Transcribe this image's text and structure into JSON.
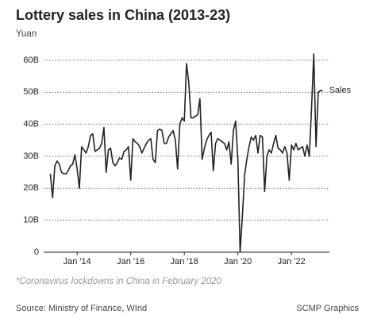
{
  "chart_data": {
    "type": "line",
    "title": "Lottery sales in China (2013-23)",
    "y_label": "Yuan",
    "note": "*Coronavirus lockdowns in China in February 2020",
    "source": "Source: Ministry of Finance, WInd",
    "credit": "SCMP Graphics",
    "x": [
      "2013-01",
      "2013-02",
      "2013-03",
      "2013-04",
      "2013-05",
      "2013-06",
      "2013-07",
      "2013-08",
      "2013-09",
      "2013-10",
      "2013-11",
      "2013-12",
      "2014-01",
      "2014-02",
      "2014-03",
      "2014-04",
      "2014-05",
      "2014-06",
      "2014-07",
      "2014-08",
      "2014-09",
      "2014-10",
      "2014-11",
      "2014-12",
      "2015-01",
      "2015-02",
      "2015-03",
      "2015-04",
      "2015-05",
      "2015-06",
      "2015-07",
      "2015-08",
      "2015-09",
      "2015-10",
      "2015-11",
      "2015-12",
      "2016-01",
      "2016-02",
      "2016-03",
      "2016-04",
      "2016-05",
      "2016-06",
      "2016-07",
      "2016-08",
      "2016-09",
      "2016-10",
      "2016-11",
      "2016-12",
      "2017-01",
      "2017-02",
      "2017-03",
      "2017-04",
      "2017-05",
      "2017-06",
      "2017-07",
      "2017-08",
      "2017-09",
      "2017-10",
      "2017-11",
      "2017-12",
      "2018-01",
      "2018-02",
      "2018-03",
      "2018-04",
      "2018-05",
      "2018-06",
      "2018-07",
      "2018-08",
      "2018-09",
      "2018-10",
      "2018-11",
      "2018-12",
      "2019-01",
      "2019-02",
      "2019-03",
      "2019-04",
      "2019-05",
      "2019-06",
      "2019-07",
      "2019-08",
      "2019-09",
      "2019-10",
      "2019-11",
      "2019-12",
      "2020-01",
      "2020-02",
      "2020-03",
      "2020-04",
      "2020-05",
      "2020-06",
      "2020-07",
      "2020-08",
      "2020-09",
      "2020-10",
      "2020-11",
      "2020-12",
      "2021-01",
      "2021-02",
      "2021-03",
      "2021-04",
      "2021-05",
      "2021-06",
      "2021-07",
      "2021-08",
      "2021-09",
      "2021-10",
      "2021-11",
      "2021-12",
      "2022-01",
      "2022-02",
      "2022-03",
      "2022-04",
      "2022-05",
      "2022-06",
      "2022-07",
      "2022-08",
      "2022-09",
      "2022-10",
      "2022-11",
      "2022-12",
      "2023-01",
      "2023-02",
      "2023-03"
    ],
    "series": [
      {
        "name": "Sales",
        "color": "#222222",
        "values": [
          24.5,
          17,
          27,
          28.5,
          27.5,
          25,
          24.5,
          24.5,
          25.5,
          27,
          27.5,
          30.5,
          26,
          20,
          33,
          32,
          31,
          33,
          36.5,
          37,
          31.5,
          32,
          32.5,
          34,
          39,
          25,
          32,
          32.5,
          28,
          27,
          28,
          29.5,
          29,
          31.5,
          32,
          33,
          22.5,
          35.5,
          34.5,
          34,
          33,
          31,
          32.5,
          34,
          35,
          35.5,
          29,
          28,
          38,
          38.5,
          38,
          34,
          34,
          36,
          37,
          38,
          35,
          26,
          40,
          42,
          41,
          59,
          53,
          42,
          42,
          42.5,
          43,
          48,
          29,
          32.5,
          35,
          36.5,
          37.5,
          25.5,
          34,
          35.5,
          35,
          34.5,
          34,
          32,
          34.5,
          27.5,
          38,
          41,
          29,
          0,
          11,
          24,
          29,
          33,
          36,
          35,
          36.5,
          31,
          36.5,
          36,
          19,
          30,
          32,
          31,
          34,
          36.5,
          32.5,
          32,
          31,
          33,
          31,
          22.5,
          33.5,
          32,
          34,
          32,
          32.5,
          33,
          30,
          33.5,
          30,
          45,
          62,
          33,
          50,
          50.5,
          50.5
        ]
      }
    ],
    "xlim": [
      "2012-10",
      "2023-06"
    ],
    "xticks": [
      {
        "value": "2014-01",
        "label": "Jan '14"
      },
      {
        "value": "2016-01",
        "label": "Jan '16"
      },
      {
        "value": "2018-01",
        "label": "Jan '18"
      },
      {
        "value": "2020-01",
        "label": "Jan '20"
      },
      {
        "value": "2022-01",
        "label": "Jan '22"
      }
    ],
    "ylim": [
      0,
      60
    ],
    "yticks": [
      0,
      {
        "value": 10,
        "label": "10B"
      },
      {
        "value": 20,
        "label": "20B"
      },
      {
        "value": 30,
        "label": "30B"
      },
      {
        "value": 40,
        "label": "40B"
      },
      {
        "value": 50,
        "label": "50B"
      },
      {
        "value": 60,
        "label": "60B"
      }
    ],
    "grid": true
  }
}
